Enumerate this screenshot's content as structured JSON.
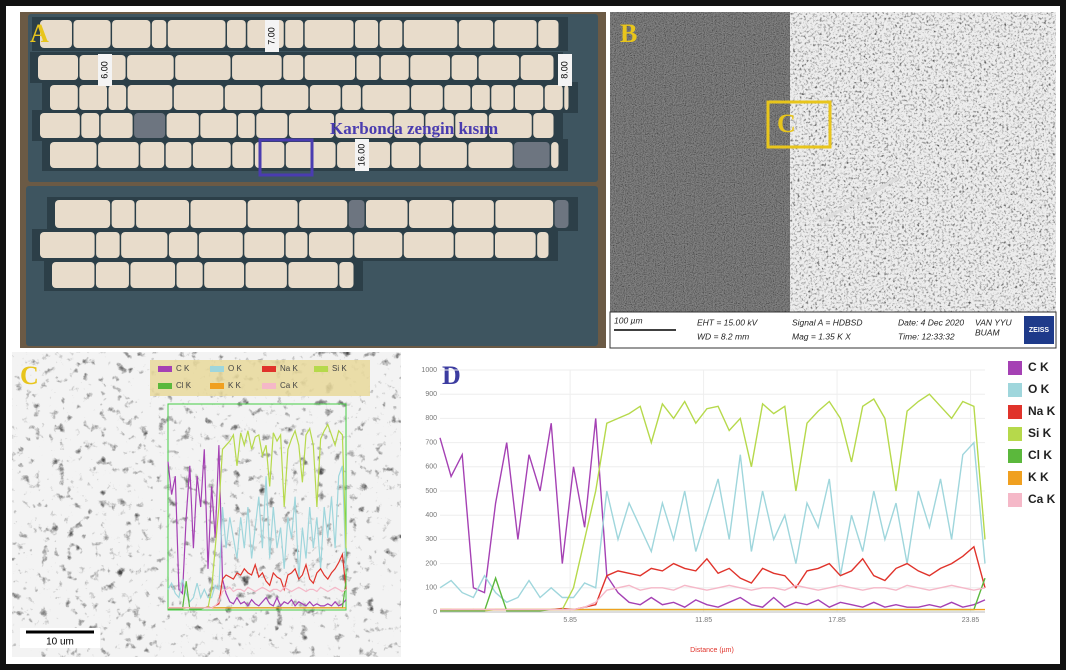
{
  "panels": {
    "A": {
      "label": "A",
      "annotation": "Karbonca zengin kısım",
      "depth_labels": [
        "7.00",
        "6.00",
        "8.00",
        "16.00"
      ]
    },
    "B": {
      "label": "B",
      "box_label": "C",
      "scale_bar": "100 µm",
      "info": [
        "EHT = 15.00 kV",
        "WD = 8.2 mm",
        "Signal A = HDBSD",
        "Mag = 1.35 K X",
        "Date: 4 Dec 2020",
        "Time: 12:33:32",
        "VAN YYU",
        "BUAM"
      ],
      "logo": "ZEISS"
    },
    "C": {
      "label": "C",
      "scale_bar": "10 um"
    },
    "D": {
      "label": "D"
    }
  },
  "chart_data": {
    "type": "line",
    "xlabel": "Distance (µm)",
    "x": [
      0,
      0.5,
      1,
      1.5,
      2,
      2.5,
      3,
      3.5,
      4,
      4.5,
      5,
      5.5,
      6,
      6.5,
      7,
      7.5,
      8,
      8.5,
      9,
      9.5,
      10,
      10.5,
      11,
      11.5,
      12,
      12.5,
      13,
      13.5,
      14,
      14.5,
      15,
      15.5,
      16,
      16.5,
      17,
      17.5,
      18,
      18.5,
      19,
      19.5,
      20,
      20.5,
      21,
      21.5,
      22,
      22.5,
      23,
      23.5,
      24,
      24.5
    ],
    "xlim": [
      0,
      24.5
    ],
    "xticks": [
      5.85,
      11.85,
      17.85,
      23.85
    ],
    "ylim": [
      0,
      1000
    ],
    "yticks": [
      0,
      100,
      200,
      300,
      400,
      500,
      600,
      700,
      800,
      900,
      1000
    ],
    "grid": true,
    "series": [
      {
        "name": "C K",
        "color": "#a541b4",
        "values": [
          720,
          560,
          650,
          100,
          80,
          450,
          700,
          300,
          650,
          500,
          780,
          200,
          600,
          350,
          800,
          150,
          80,
          40,
          30,
          60,
          30,
          40,
          20,
          50,
          30,
          20,
          40,
          60,
          30,
          20,
          60,
          20,
          40,
          30,
          50,
          20,
          40,
          30,
          20,
          40,
          20,
          30,
          20,
          20,
          30,
          20,
          40,
          20,
          30,
          50
        ]
      },
      {
        "name": "O K",
        "color": "#9fd6dc",
        "values": [
          100,
          130,
          80,
          60,
          150,
          80,
          40,
          60,
          130,
          60,
          100,
          60,
          60,
          120,
          100,
          500,
          300,
          450,
          350,
          250,
          450,
          300,
          500,
          250,
          400,
          550,
          300,
          650,
          250,
          500,
          300,
          400,
          200,
          450,
          350,
          550,
          150,
          400,
          250,
          500,
          300,
          450,
          200,
          500,
          350,
          550,
          300,
          650,
          700,
          200
        ]
      },
      {
        "name": "Na K",
        "color": "#e0332b",
        "values": [
          10,
          10,
          10,
          10,
          10,
          10,
          10,
          10,
          10,
          10,
          10,
          15,
          10,
          20,
          30,
          150,
          170,
          160,
          150,
          180,
          170,
          200,
          180,
          170,
          220,
          160,
          180,
          140,
          120,
          180,
          160,
          150,
          100,
          170,
          180,
          200,
          150,
          170,
          220,
          150,
          130,
          180,
          200,
          170,
          150,
          180,
          200,
          230,
          270,
          100
        ]
      },
      {
        "name": "Si K",
        "color": "#b6d94b",
        "values": [
          10,
          10,
          5,
          10,
          5,
          10,
          10,
          10,
          10,
          10,
          10,
          10,
          100,
          300,
          500,
          780,
          800,
          820,
          850,
          700,
          860,
          800,
          870,
          780,
          840,
          850,
          750,
          800,
          600,
          860,
          820,
          850,
          500,
          780,
          830,
          870,
          800,
          620,
          850,
          880,
          800,
          500,
          830,
          870,
          900,
          850,
          800,
          870,
          850,
          300
        ]
      },
      {
        "name": "Cl K",
        "color": "#5bb83c",
        "values": [
          5,
          5,
          5,
          5,
          5,
          140,
          5,
          5,
          5,
          5,
          10,
          10,
          10,
          10,
          10,
          10,
          10,
          10,
          10,
          10,
          10,
          10,
          10,
          10,
          10,
          10,
          10,
          10,
          10,
          10,
          10,
          10,
          10,
          10,
          10,
          10,
          10,
          10,
          10,
          10,
          10,
          10,
          10,
          10,
          10,
          10,
          10,
          10,
          10,
          140
        ]
      },
      {
        "name": "K K",
        "color": "#f0a020",
        "values": [
          10,
          10,
          10,
          10,
          10,
          10,
          10,
          10,
          10,
          10,
          10,
          10,
          10,
          10,
          10,
          10,
          10,
          10,
          10,
          10,
          10,
          10,
          10,
          10,
          10,
          10,
          10,
          10,
          10,
          10,
          10,
          10,
          10,
          10,
          10,
          10,
          10,
          10,
          10,
          10,
          10,
          10,
          10,
          10,
          10,
          10,
          10,
          10,
          10,
          10
        ]
      },
      {
        "name": "Ca K",
        "color": "#f5b8c8",
        "values": [
          10,
          10,
          10,
          10,
          10,
          10,
          10,
          10,
          10,
          10,
          10,
          10,
          10,
          20,
          40,
          90,
          100,
          110,
          90,
          100,
          100,
          90,
          110,
          100,
          90,
          100,
          110,
          100,
          90,
          100,
          100,
          90,
          110,
          100,
          90,
          100,
          110,
          100,
          90,
          100,
          100,
          90,
          110,
          100,
          90,
          100,
          110,
          100,
          90,
          100
        ]
      }
    ]
  }
}
